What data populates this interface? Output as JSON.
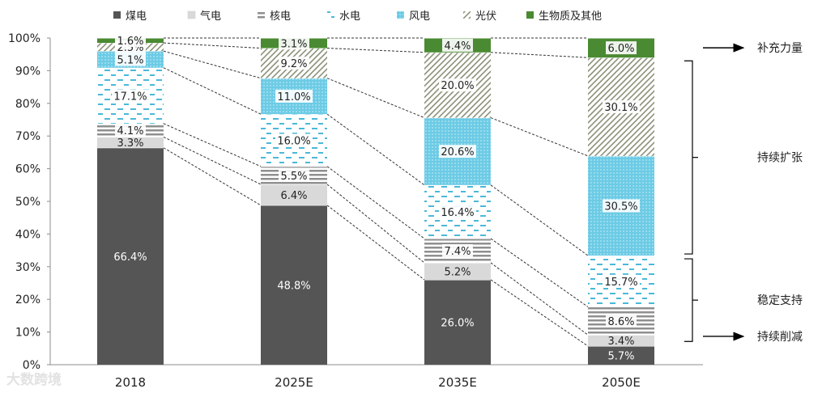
{
  "watermark": "大数跨境",
  "chart_data": {
    "type": "bar",
    "stacked": true,
    "categories": [
      "2018",
      "2025E",
      "2035E",
      "2050E"
    ],
    "ylim": [
      0,
      100
    ],
    "yticks": [
      "0%",
      "10%",
      "20%",
      "30%",
      "40%",
      "50%",
      "60%",
      "70%",
      "80%",
      "90%",
      "100%"
    ],
    "legend_position": "top",
    "series": [
      {
        "name": "煤电",
        "values": [
          66.4,
          48.8,
          26.0,
          5.7
        ],
        "labels": [
          "66.4%",
          "48.8%",
          "26.0%",
          "5.7%"
        ],
        "color": "#555555"
      },
      {
        "name": "气电",
        "values": [
          3.3,
          6.4,
          5.2,
          3.4
        ],
        "labels": [
          "3.3%",
          "6.4%",
          "5.2%",
          "3.4%"
        ],
        "color": "#d4d4d4"
      },
      {
        "name": "核电",
        "values": [
          4.1,
          5.5,
          7.4,
          8.6
        ],
        "labels": [
          "4.1%",
          "5.5%",
          "7.4%",
          "8.6%"
        ],
        "color": "#9a9a9a"
      },
      {
        "name": "水电",
        "values": [
          17.1,
          16.0,
          16.4,
          15.7
        ],
        "labels": [
          "17.1%",
          "16.0%",
          "16.4%",
          "15.7%"
        ],
        "color": "#5bc0de"
      },
      {
        "name": "风电",
        "values": [
          5.1,
          11.0,
          20.6,
          30.5
        ],
        "labels": [
          "5.1%",
          "11.0%",
          "20.6%",
          "30.5%"
        ],
        "color": "#7fd3ea"
      },
      {
        "name": "光伏",
        "values": [
          2.5,
          9.2,
          20.0,
          30.1
        ],
        "labels": [
          "2.5%",
          "9.2%",
          "20.0%",
          "30.1%"
        ],
        "color": "#9aa08a"
      },
      {
        "name": "生物质及其他",
        "values": [
          1.6,
          3.1,
          4.4,
          6.0
        ],
        "labels": [
          "1.6%",
          "3.1%",
          "4.4%",
          "6.0%"
        ],
        "color": "#4e8a35"
      }
    ],
    "annotations": [
      {
        "text": "补充力量",
        "series": "生物质及其他"
      },
      {
        "text": "持续扩张",
        "series": [
          "风电",
          "光伏"
        ]
      },
      {
        "text": "稳定支持",
        "series": [
          "核电",
          "水电"
        ]
      },
      {
        "text": "持续削减",
        "series": "煤电"
      }
    ]
  }
}
